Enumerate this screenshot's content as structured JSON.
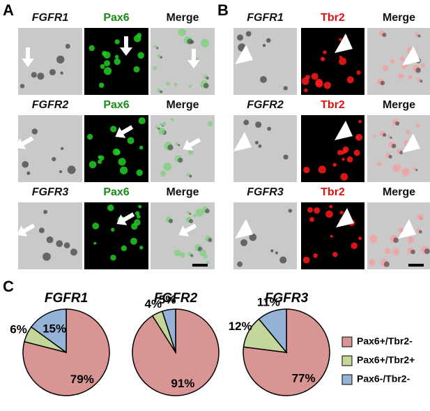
{
  "panel_labels": [
    "A",
    "B",
    "C"
  ],
  "panel_a": {
    "rows": [
      {
        "gene": "FGFR1",
        "marker": "Pax6",
        "merge": "Merge"
      },
      {
        "gene": "FGFR2",
        "marker": "Pax6",
        "merge": "Merge"
      },
      {
        "gene": "FGFR3",
        "marker": "Pax6",
        "merge": "Merge"
      }
    ]
  },
  "panel_b": {
    "rows": [
      {
        "gene": "FGFR1",
        "marker": "Tbr2",
        "merge": "Merge"
      },
      {
        "gene": "FGFR2",
        "marker": "Tbr2",
        "merge": "Merge"
      },
      {
        "gene": "FGFR3",
        "marker": "Tbr2",
        "merge": "Merge"
      }
    ]
  },
  "chart_data": [
    {
      "type": "pie",
      "title": "FGFR1",
      "categories": [
        "Pax6+/Tbr2-",
        "Pax6+/Tbr2+",
        "Pax6-/Tbr2-"
      ],
      "values": [
        79,
        6,
        15
      ],
      "value_labels": [
        "79%",
        "6%",
        "15%"
      ],
      "colors": [
        "#d99594",
        "#c4d79b",
        "#95b3d7"
      ]
    },
    {
      "type": "pie",
      "title": "FGFR2",
      "categories": [
        "Pax6+/Tbr2-",
        "Pax6+/Tbr2+",
        "Pax6-/Tbr2-"
      ],
      "values": [
        91,
        4,
        5
      ],
      "value_labels": [
        "91%",
        "4%",
        "5%"
      ],
      "colors": [
        "#d99594",
        "#c4d79b",
        "#95b3d7"
      ]
    },
    {
      "type": "pie",
      "title": "FGFR3",
      "categories": [
        "Pax6+/Tbr2-",
        "Pax6+/Tbr2+",
        "Pax6-/Tbr2-"
      ],
      "values": [
        77,
        12,
        11
      ],
      "value_labels": [
        "77%",
        "12%",
        "11%"
      ],
      "colors": [
        "#d99594",
        "#c4d79b",
        "#95b3d7"
      ]
    }
  ]
}
